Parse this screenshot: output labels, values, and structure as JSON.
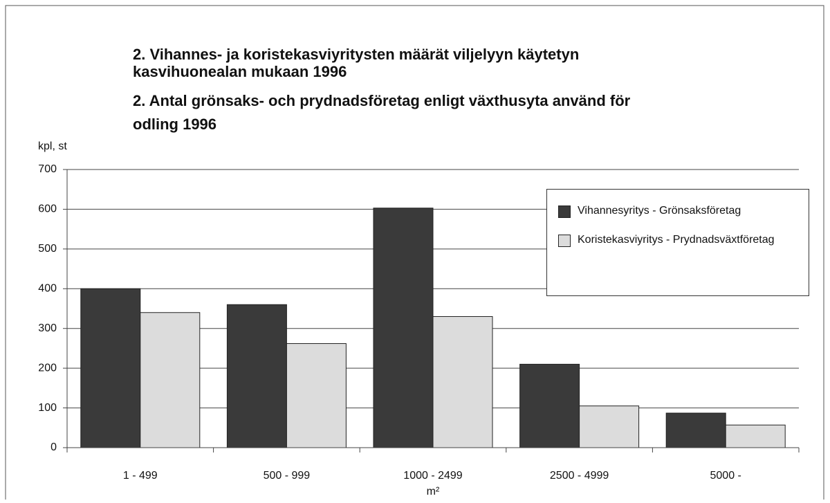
{
  "chart_data": {
    "type": "bar",
    "title": [
      "2. Vihannes- ja koristekasviyritysten määrät viljelyyn käytetyn",
      "kasvihuonealan mukaan 1996",
      "2. Antal grönsaks- och prydnadsföretag enligt växthusyta använd för",
      "odling 1996"
    ],
    "y_label": "kpl, st",
    "x_label": "m²",
    "categories": [
      "1 - 499",
      "500 - 999",
      "1000 - 2499",
      "2500 - 4999",
      "5000 -"
    ],
    "series": [
      {
        "name": "Vihannesyritys - Grönsaksföretag",
        "color": "#3a3a3a",
        "values": [
          400,
          360,
          603,
          210,
          87
        ]
      },
      {
        "name": "Koristekasviyritys - Prydnadsväxtföretag",
        "color": "#dcdcdc",
        "values": [
          340,
          262,
          330,
          105,
          57
        ]
      }
    ],
    "ylim": [
      0,
      700
    ],
    "yticks": [
      0,
      100,
      200,
      300,
      400,
      500,
      600,
      700
    ],
    "grid": true
  }
}
